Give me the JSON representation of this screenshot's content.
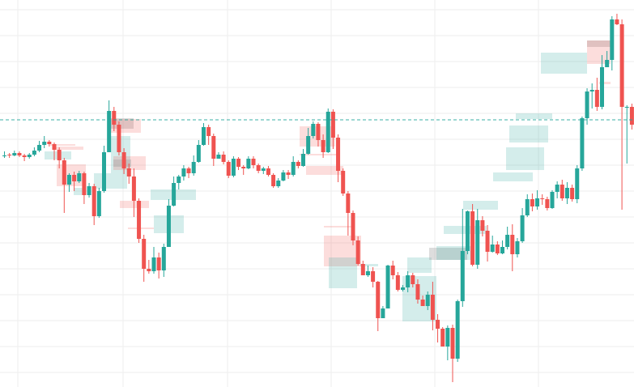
{
  "chart_data": {
    "type": "candlestick",
    "title": "",
    "xlabel": "",
    "ylabel": "",
    "ylim": [
      0,
      478
    ],
    "x_count": 124,
    "grid": true,
    "legend": "none",
    "colors": {
      "up": "#26a69a",
      "down": "#ef5350",
      "grid": "#eeeeee",
      "ref_line": "#26a69a",
      "zone_up": "#26a69a",
      "zone_down": "#ef5350",
      "zone_neutral": "#9e9e9e"
    },
    "reference_line": {
      "y": 330
    },
    "candles": [
      [
        285,
        286,
        291,
        283
      ],
      [
        287,
        286,
        289,
        283
      ],
      [
        286,
        289,
        292,
        285
      ],
      [
        289,
        286,
        291,
        284
      ],
      [
        286,
        284,
        288,
        279
      ],
      [
        284,
        287,
        289,
        282
      ],
      [
        287,
        292,
        296,
        285
      ],
      [
        292,
        299,
        304,
        290
      ],
      [
        299,
        303,
        310,
        295
      ],
      [
        303,
        300,
        305,
        297
      ],
      [
        300,
        293,
        302,
        280
      ],
      [
        293,
        280,
        296,
        270
      ],
      [
        280,
        250,
        283,
        215
      ],
      [
        250,
        262,
        264,
        241
      ],
      [
        262,
        254,
        266,
        242
      ],
      [
        254,
        264,
        267,
        252
      ],
      [
        264,
        237,
        266,
        226
      ],
      [
        237,
        248,
        252,
        234
      ],
      [
        248,
        211,
        251,
        200
      ],
      [
        211,
        242,
        246,
        209
      ],
      [
        242,
        290,
        298,
        240
      ],
      [
        290,
        341,
        354,
        290
      ],
      [
        341,
        324,
        346,
        316
      ],
      [
        324,
        290,
        328,
        286
      ],
      [
        290,
        270,
        295,
        263
      ],
      [
        270,
        260,
        276,
        251
      ],
      [
        260,
        230,
        270,
        210
      ],
      [
        230,
        183,
        233,
        178
      ],
      [
        183,
        146,
        188,
        130
      ],
      [
        146,
        143,
        157,
        140
      ],
      [
        143,
        160,
        173,
        140
      ],
      [
        160,
        144,
        166,
        134
      ],
      [
        144,
        173,
        177,
        136
      ],
      [
        173,
        224,
        232,
        173
      ],
      [
        224,
        252,
        260,
        223
      ],
      [
        252,
        260,
        262,
        244
      ],
      [
        260,
        270,
        274,
        255
      ],
      [
        270,
        264,
        272,
        258
      ],
      [
        264,
        278,
        286,
        261
      ],
      [
        278,
        299,
        305,
        277
      ],
      [
        299,
        321,
        326,
        298
      ],
      [
        321,
        310,
        324,
        299
      ],
      [
        310,
        282,
        313,
        273
      ],
      [
        282,
        287,
        290,
        282
      ],
      [
        287,
        278,
        291,
        275
      ],
      [
        278,
        261,
        280,
        258
      ],
      [
        261,
        282,
        285,
        259
      ],
      [
        282,
        272,
        284,
        268
      ],
      [
        272,
        270,
        274,
        262
      ],
      [
        270,
        282,
        285,
        269
      ],
      [
        282,
        274,
        285,
        270
      ],
      [
        274,
        267,
        276,
        264
      ],
      [
        267,
        270,
        272,
        263
      ],
      [
        270,
        262,
        273,
        260
      ],
      [
        262,
        248,
        264,
        246
      ],
      [
        248,
        255,
        258,
        246
      ],
      [
        255,
        265,
        268,
        254
      ],
      [
        265,
        262,
        268,
        257
      ],
      [
        262,
        278,
        285,
        260
      ],
      [
        278,
        273,
        280,
        270
      ],
      [
        273,
        288,
        294,
        272
      ],
      [
        288,
        310,
        320,
        287
      ],
      [
        310,
        325,
        328,
        307
      ],
      [
        325,
        305,
        327,
        297
      ],
      [
        305,
        290,
        312,
        283
      ],
      [
        290,
        340,
        344,
        289
      ],
      [
        340,
        308,
        343,
        294
      ],
      [
        308,
        267,
        312,
        253
      ],
      [
        267,
        239,
        270,
        236
      ],
      [
        239,
        215,
        242,
        187
      ],
      [
        215,
        181,
        218,
        175
      ],
      [
        181,
        152,
        186,
        150
      ],
      [
        152,
        138,
        156,
        138
      ],
      [
        138,
        143,
        150,
        136
      ],
      [
        143,
        130,
        148,
        123
      ],
      [
        130,
        85,
        131,
        69
      ],
      [
        85,
        97,
        100,
        93
      ],
      [
        97,
        150,
        151,
        146
      ],
      [
        150,
        138,
        156,
        133
      ],
      [
        138,
        120,
        142,
        118
      ],
      [
        120,
        123,
        126,
        118
      ],
      [
        123,
        138,
        143,
        117
      ],
      [
        138,
        127,
        141,
        123
      ],
      [
        127,
        108,
        133,
        103
      ],
      [
        108,
        100,
        113,
        100
      ],
      [
        100,
        114,
        118,
        95
      ],
      [
        114,
        83,
        130,
        70
      ],
      [
        83,
        72,
        90,
        55
      ],
      [
        72,
        50,
        74,
        50
      ],
      [
        50,
        73,
        76,
        33
      ],
      [
        73,
        35,
        77,
        6
      ],
      [
        35,
        106,
        108,
        31
      ],
      [
        106,
        168,
        220,
        99
      ],
      [
        168,
        217,
        218,
        164
      ],
      [
        217,
        151,
        226,
        149
      ],
      [
        151,
        206,
        220,
        146
      ],
      [
        206,
        193,
        211,
        186
      ],
      [
        193,
        167,
        200,
        155
      ],
      [
        167,
        176,
        187,
        166
      ],
      [
        176,
        165,
        180,
        163
      ],
      [
        165,
        173,
        181,
        164
      ],
      [
        173,
        188,
        198,
        170
      ],
      [
        188,
        164,
        201,
        143
      ],
      [
        164,
        180,
        184,
        160
      ],
      [
        180,
        212,
        221,
        178
      ],
      [
        212,
        232,
        238,
        210
      ],
      [
        232,
        223,
        239,
        217
      ],
      [
        223,
        233,
        243,
        219
      ],
      [
        233,
        232,
        238,
        225
      ],
      [
        232,
        221,
        235,
        218
      ],
      [
        221,
        241,
        243,
        220
      ],
      [
        241,
        250,
        254,
        233
      ],
      [
        250,
        233,
        256,
        230
      ],
      [
        233,
        246,
        253,
        226
      ],
      [
        246,
        232,
        250,
        229
      ],
      [
        232,
        270,
        274,
        227
      ],
      [
        270,
        332,
        334,
        267
      ],
      [
        332,
        365,
        369,
        324
      ],
      [
        365,
        367,
        375,
        344
      ],
      [
        367,
        346,
        382,
        341
      ],
      [
        346,
        395,
        410,
        343
      ],
      [
        395,
        404,
        415,
        402
      ],
      [
        404,
        454,
        458,
        391
      ],
      [
        454,
        448,
        461,
        447
      ],
      [
        448,
        346,
        454,
        219
      ],
      [
        346,
        346,
        348,
        276
      ],
      [
        346,
        324,
        350,
        318
      ],
      [
        324,
        326,
        331,
        320
      ]
    ],
    "zones": [
      {
        "t": "up",
        "l": 55,
        "r": 88,
        "y0": 281,
        "y1": 291
      },
      {
        "t": "down",
        "l": 65,
        "r": 103,
        "y0": 293,
        "y1": 297
      },
      {
        "t": "down",
        "l": 62,
        "r": 93,
        "y0": 298,
        "y1": 300
      },
      {
        "t": "down",
        "l": 70,
        "r": 106,
        "y0": 248,
        "y1": 275
      },
      {
        "t": "up",
        "l": 91,
        "r": 106,
        "y0": 237,
        "y1": 246
      },
      {
        "t": "up",
        "l": 116,
        "r": 157,
        "y0": 245,
        "y1": 264
      },
      {
        "t": "neutral",
        "l": 133,
        "r": 165,
        "y0": 319,
        "y1": 332
      },
      {
        "t": "down",
        "l": 133,
        "r": 174,
        "y0": 314,
        "y1": 331
      },
      {
        "t": "up",
        "l": 137,
        "r": 161,
        "y0": 264,
        "y1": 310
      },
      {
        "t": "down",
        "l": 140,
        "r": 180,
        "y0": 268,
        "y1": 285
      },
      {
        "t": "neutral",
        "l": 140,
        "r": 162,
        "y0": 272,
        "y1": 281
      },
      {
        "t": "down",
        "l": 148,
        "r": 184,
        "y0": 221,
        "y1": 230
      },
      {
        "t": "up",
        "l": 186,
        "r": 242,
        "y0": 231,
        "y1": 244
      },
      {
        "t": "up",
        "l": 190,
        "r": 227,
        "y0": 190,
        "y1": 212
      },
      {
        "t": "down",
        "l": 158,
        "r": 190,
        "y0": 195,
        "y1": 197
      },
      {
        "t": "down",
        "l": 370,
        "r": 414,
        "y0": 297,
        "y1": 322
      },
      {
        "t": "down",
        "l": 370,
        "r": 418,
        "y0": 286,
        "y1": 288
      },
      {
        "t": "down",
        "l": 378,
        "r": 424,
        "y0": 262,
        "y1": 273
      },
      {
        "t": "down",
        "l": 400,
        "r": 437,
        "y0": 197,
        "y1": 199
      },
      {
        "t": "down",
        "l": 400,
        "r": 446,
        "y0": 149,
        "y1": 187
      },
      {
        "t": "up",
        "l": 406,
        "r": 441,
        "y0": 122,
        "y1": 160
      },
      {
        "t": "up",
        "l": 445,
        "r": 467,
        "y0": 149,
        "y1": 152
      },
      {
        "t": "up",
        "l": 497,
        "r": 539,
        "y0": 81,
        "y1": 137
      },
      {
        "t": "up",
        "l": 503,
        "r": 533,
        "y0": 141,
        "y1": 160
      },
      {
        "t": "neutral",
        "l": 530,
        "r": 577,
        "y0": 157,
        "y1": 172
      },
      {
        "t": "up",
        "l": 539,
        "r": 586,
        "y0": 157,
        "y1": 174
      },
      {
        "t": "up",
        "l": 548,
        "r": 601,
        "y0": 189,
        "y1": 199
      },
      {
        "t": "up",
        "l": 572,
        "r": 615,
        "y0": 219,
        "y1": 230
      },
      {
        "t": "up",
        "l": 609,
        "r": 658,
        "y0": 254,
        "y1": 265
      },
      {
        "t": "up",
        "l": 625,
        "r": 672,
        "y0": 268,
        "y1": 296
      },
      {
        "t": "up",
        "l": 629,
        "r": 677,
        "y0": 302,
        "y1": 323
      },
      {
        "t": "up",
        "l": 637,
        "r": 682,
        "y0": 331,
        "y1": 338
      },
      {
        "t": "up",
        "l": 668,
        "r": 725,
        "y0": 387,
        "y1": 413
      },
      {
        "t": "neutral",
        "l": 725,
        "r": 754,
        "y0": 420,
        "y1": 428
      },
      {
        "t": "down",
        "l": 725,
        "r": 754,
        "y0": 399,
        "y1": 428
      },
      {
        "t": "down",
        "l": 740,
        "r": 754,
        "y0": 374,
        "y1": 377
      }
    ]
  }
}
